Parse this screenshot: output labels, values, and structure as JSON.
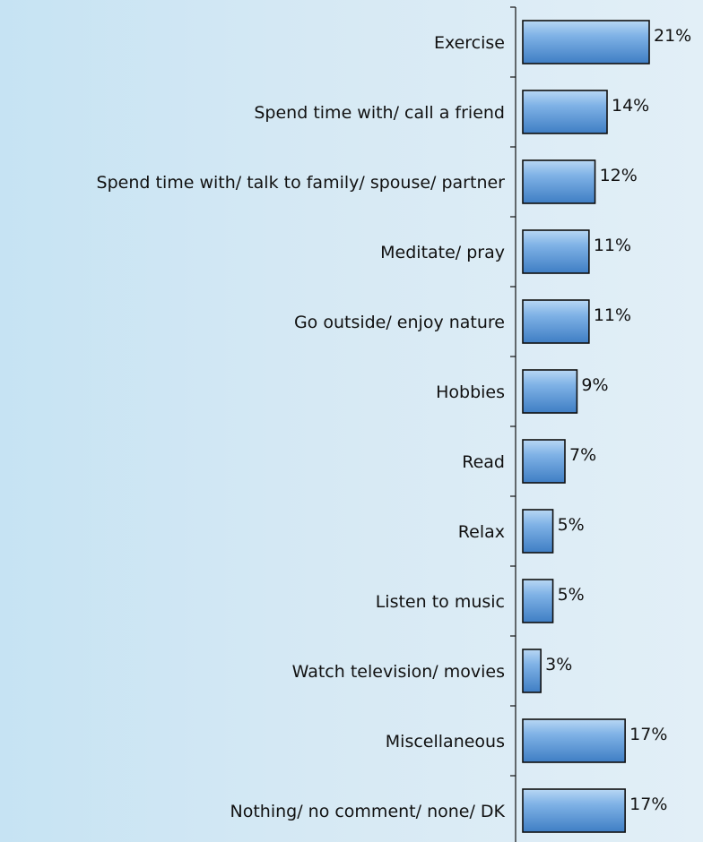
{
  "chart_data": {
    "type": "bar",
    "orientation": "horizontal",
    "categories": [
      "Exercise",
      "Spend time with/ call a friend",
      "Spend time with/ talk to family/ spouse/ partner",
      "Meditate/ pray",
      "Go outside/ enjoy nature",
      "Hobbies",
      "Read",
      "Relax",
      "Listen to music",
      "Watch television/ movies",
      "Miscellaneous",
      "Nothing/ no comment/ none/ DK"
    ],
    "values": [
      21,
      14,
      12,
      11,
      11,
      9,
      7,
      5,
      5,
      3,
      17,
      17
    ],
    "value_labels": [
      "21%",
      "14%",
      "12%",
      "11%",
      "11%",
      "9%",
      "7%",
      "5%",
      "5%",
      "3%",
      "17%",
      "17%"
    ],
    "unit": "%",
    "xlim": [
      0,
      21
    ],
    "grid": false,
    "bar_color": "#7fb2e6",
    "bar_color_light": "#b8d7f4",
    "bar_color_dark": "#3f7ec4"
  }
}
